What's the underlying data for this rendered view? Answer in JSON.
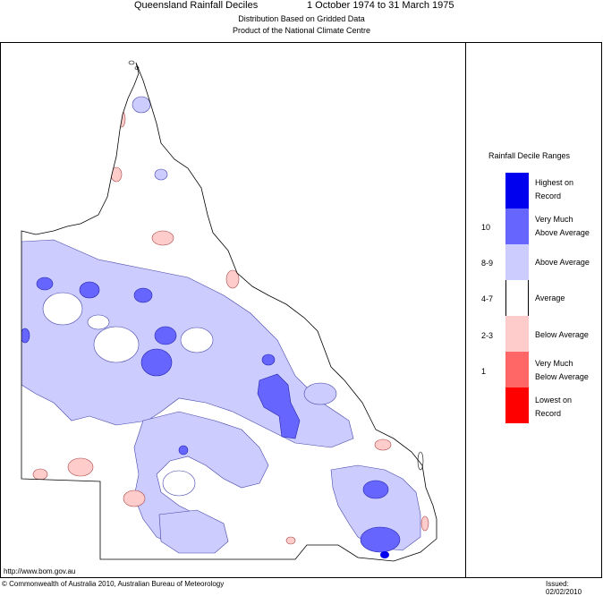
{
  "header": {
    "title": "Queensland Rainfall Deciles",
    "period": "1 October 1974 to 31 March 1975",
    "subtitle1": "Distribution Based on Gridded Data",
    "subtitle2": "Product of the National Climate Centre"
  },
  "legend": {
    "title": "Rainfall Decile Ranges",
    "items": [
      {
        "range": "",
        "line1": "Highest on",
        "line2": "Record",
        "color": "#0000ee"
      },
      {
        "range": "10",
        "line1": "Very Much",
        "line2": "Above Average",
        "color": "#6666ff"
      },
      {
        "range": "8-9",
        "line1": "Above Average",
        "line2": "",
        "color": "#ccccff"
      },
      {
        "range": "4-7",
        "line1": "Average",
        "line2": "",
        "color": "#ffffff"
      },
      {
        "range": "2-3",
        "line1": "Below Average",
        "line2": "",
        "color": "#ffcccc"
      },
      {
        "range": "1",
        "line1": "Very Much",
        "line2": "Below Average",
        "color": "#ff6666"
      },
      {
        "range": "",
        "line1": "Lowest on",
        "line2": "Record",
        "color": "#ff0000"
      }
    ]
  },
  "footer": {
    "website": "http://www.bom.gov.au",
    "copyright": "© Commonwealth of Australia 2010, Australian Bureau of Meteorology",
    "issued": "Issued: 02/02/2010"
  }
}
